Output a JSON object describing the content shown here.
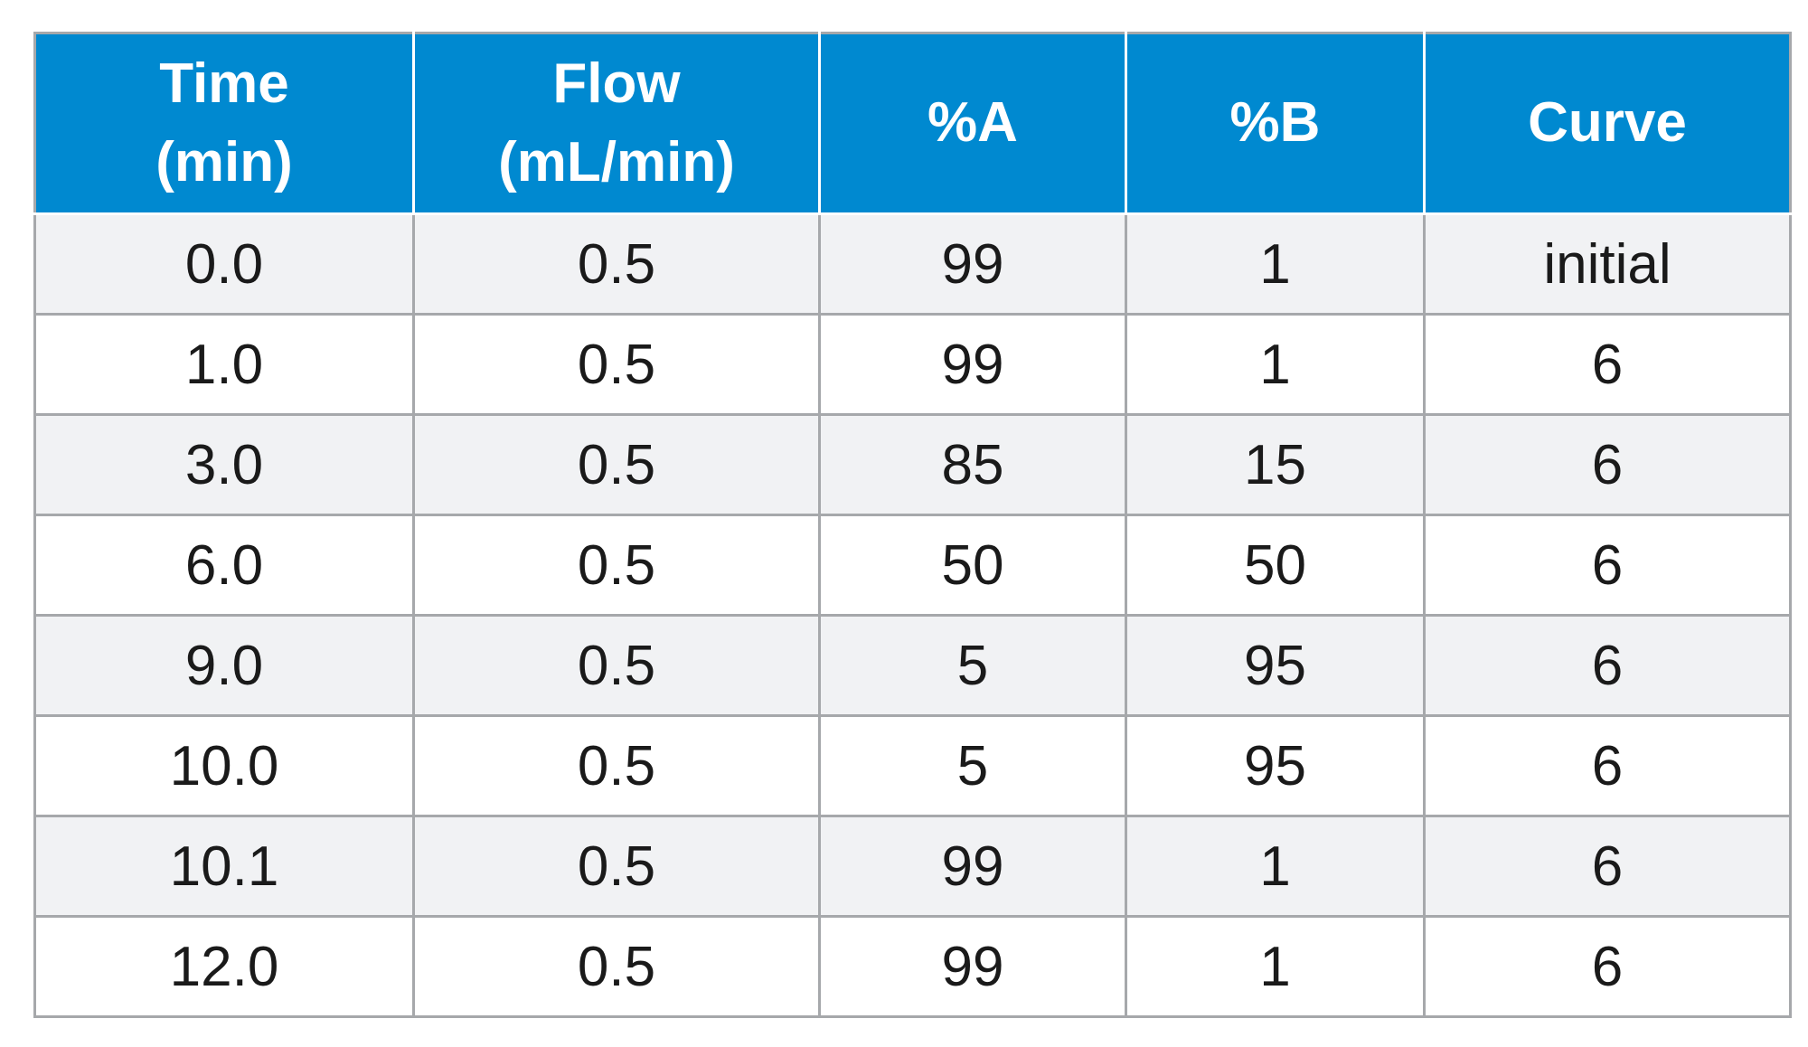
{
  "table": {
    "headers": [
      [
        "Time",
        "(min)"
      ],
      [
        "Flow",
        "(mL/min)"
      ],
      [
        "%A"
      ],
      [
        "%B"
      ],
      [
        "Curve"
      ]
    ],
    "rows": [
      [
        "0.0",
        "0.5",
        "99",
        "1",
        "initial"
      ],
      [
        "1.0",
        "0.5",
        "99",
        "1",
        "6"
      ],
      [
        "3.0",
        "0.5",
        "85",
        "15",
        "6"
      ],
      [
        "6.0",
        "0.5",
        "50",
        "50",
        "6"
      ],
      [
        "9.0",
        "0.5",
        "5",
        "95",
        "6"
      ],
      [
        "10.0",
        "0.5",
        "5",
        "95",
        "6"
      ],
      [
        "10.1",
        "0.5",
        "99",
        "1",
        "6"
      ],
      [
        "12.0",
        "0.5",
        "99",
        "1",
        "6"
      ]
    ],
    "colors": {
      "header_bg": "#0089d0",
      "header_text": "#ffffff",
      "row_alt_bg": "#f1f2f4",
      "row_bg": "#ffffff",
      "border": "#a6a8ab"
    }
  }
}
